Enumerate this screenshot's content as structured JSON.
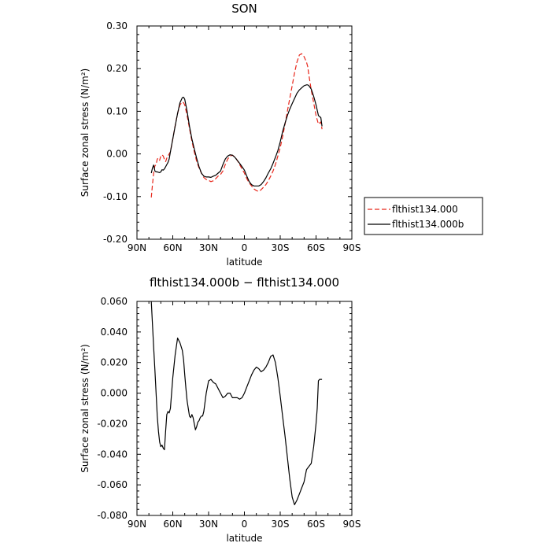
{
  "chart_data": [
    {
      "type": "line",
      "title": "SON",
      "xlabel": "latitude",
      "ylabel": "Surface zonal stress (N/m²)",
      "xlim": [
        90,
        -90
      ],
      "ylim": [
        -0.2,
        0.3
      ],
      "xticks": [
        90,
        60,
        30,
        0,
        -30,
        -60,
        -90
      ],
      "xticklabels": [
        "90N",
        "60N",
        "30N",
        "0",
        "30S",
        "60S",
        "90S"
      ],
      "yticks": [
        -0.2,
        -0.1,
        0.0,
        0.1,
        0.2,
        0.3
      ],
      "yticklabels": [
        "-0.20",
        "-0.10",
        "0.00",
        "0.10",
        "0.20",
        "0.30"
      ],
      "legend_position": "outside-right",
      "grid": false,
      "series": [
        {
          "name": "flthist134.000",
          "color": "#e8271b",
          "dash": "dashed",
          "x": [
            78,
            77,
            76,
            75,
            74,
            73,
            72,
            71,
            70,
            69,
            68,
            67,
            66,
            65,
            64,
            63,
            62,
            61,
            60,
            58,
            56,
            54,
            52,
            51,
            50,
            48,
            46,
            44,
            42,
            40,
            38,
            36,
            34,
            32,
            30,
            28,
            26,
            24,
            22,
            20,
            18,
            16,
            14,
            12,
            10,
            8,
            6,
            4,
            2,
            0,
            -2,
            -4,
            -6,
            -8,
            -10,
            -12,
            -14,
            -16,
            -18,
            -20,
            -22,
            -24,
            -26,
            -28,
            -30,
            -32,
            -34,
            -36,
            -38,
            -40,
            -42,
            -44,
            -46,
            -48,
            -50,
            -52,
            -53,
            -54,
            -56,
            -58,
            -60,
            -62,
            -64,
            -65
          ],
          "y": [
            -0.102,
            -0.072,
            -0.045,
            -0.028,
            -0.025,
            -0.012,
            -0.01,
            -0.015,
            -0.005,
            -0.002,
            -0.005,
            -0.013,
            -0.018,
            -0.01,
            -0.005,
            0.0,
            0.005,
            0.02,
            0.035,
            0.066,
            0.095,
            0.115,
            0.122,
            0.12,
            0.115,
            0.09,
            0.06,
            0.03,
            0.005,
            -0.017,
            -0.033,
            -0.045,
            -0.055,
            -0.06,
            -0.062,
            -0.065,
            -0.063,
            -0.058,
            -0.052,
            -0.048,
            -0.04,
            -0.025,
            -0.012,
            -0.005,
            -0.003,
            -0.007,
            -0.015,
            -0.025,
            -0.035,
            -0.045,
            -0.058,
            -0.068,
            -0.075,
            -0.082,
            -0.086,
            -0.088,
            -0.084,
            -0.078,
            -0.072,
            -0.063,
            -0.052,
            -0.04,
            -0.025,
            -0.005,
            0.015,
            0.04,
            0.07,
            0.1,
            0.13,
            0.16,
            0.19,
            0.215,
            0.232,
            0.235,
            0.228,
            0.215,
            0.205,
            0.185,
            0.15,
            0.12,
            0.09,
            0.07,
            0.075,
            0.058
          ]
        },
        {
          "name": "flthist134.000b",
          "color": "#000000",
          "dash": "solid",
          "x": [
            78,
            77,
            76,
            75,
            74,
            73,
            72,
            71,
            70,
            69,
            68,
            67,
            66,
            65,
            64,
            63,
            62,
            61,
            60,
            58,
            56,
            54,
            52,
            51,
            50,
            48,
            46,
            44,
            42,
            40,
            38,
            36,
            34,
            32,
            30,
            28,
            26,
            24,
            22,
            20,
            18,
            16,
            14,
            12,
            10,
            8,
            6,
            4,
            2,
            0,
            -2,
            -4,
            -6,
            -8,
            -10,
            -12,
            -14,
            -16,
            -18,
            -20,
            -22,
            -24,
            -26,
            -28,
            -30,
            -32,
            -34,
            -36,
            -38,
            -40,
            -42,
            -44,
            -46,
            -48,
            -50,
            -52,
            -53,
            -54,
            -56,
            -58,
            -60,
            -62,
            -64,
            -65
          ],
          "y": [
            -0.045,
            -0.033,
            -0.026,
            -0.04,
            -0.042,
            -0.042,
            -0.043,
            -0.044,
            -0.042,
            -0.037,
            -0.038,
            -0.035,
            -0.03,
            -0.025,
            -0.02,
            -0.012,
            0.005,
            0.02,
            0.035,
            0.065,
            0.095,
            0.12,
            0.132,
            0.133,
            0.128,
            0.1,
            0.065,
            0.035,
            0.012,
            -0.01,
            -0.03,
            -0.045,
            -0.052,
            -0.054,
            -0.054,
            -0.055,
            -0.052,
            -0.05,
            -0.045,
            -0.04,
            -0.025,
            -0.012,
            -0.005,
            -0.002,
            -0.003,
            -0.008,
            -0.015,
            -0.022,
            -0.03,
            -0.038,
            -0.052,
            -0.065,
            -0.072,
            -0.075,
            -0.075,
            -0.075,
            -0.072,
            -0.065,
            -0.056,
            -0.045,
            -0.035,
            -0.022,
            -0.008,
            0.008,
            0.028,
            0.052,
            0.072,
            0.09,
            0.105,
            0.118,
            0.13,
            0.142,
            0.15,
            0.155,
            0.16,
            0.162,
            0.162,
            0.16,
            0.152,
            0.135,
            0.115,
            0.09,
            0.085,
            0.065
          ]
        }
      ]
    },
    {
      "type": "line",
      "title": "flthist134.000b − flthist134.000",
      "xlabel": "latitude",
      "ylabel": "Surface zonal stress (N/m²)",
      "xlim": [
        90,
        -90
      ],
      "ylim": [
        -0.08,
        0.06
      ],
      "xticks": [
        90,
        60,
        30,
        0,
        -30,
        -60,
        -90
      ],
      "xticklabels": [
        "90N",
        "60N",
        "30N",
        "0",
        "30S",
        "60S",
        "90S"
      ],
      "yticks": [
        -0.08,
        -0.06,
        -0.04,
        -0.02,
        0.0,
        0.02,
        0.04,
        0.06
      ],
      "yticklabels": [
        "-0.080",
        "-0.060",
        "-0.040",
        "-0.020",
        "0.000",
        "0.020",
        "0.040",
        "0.060"
      ],
      "grid": false,
      "series": [
        {
          "color": "#000000",
          "dash": "solid",
          "x": [
            78,
            77,
            76,
            75,
            74,
            73,
            72,
            71,
            70,
            69,
            68,
            67,
            66,
            65,
            64,
            63,
            62,
            61,
            60,
            58,
            56,
            54,
            52,
            51,
            50,
            49,
            48,
            47,
            46,
            45,
            44,
            43,
            42,
            41,
            40,
            39,
            38,
            37,
            36,
            35,
            34,
            32,
            30,
            28,
            26,
            24,
            22,
            20,
            18,
            16,
            14,
            12,
            10,
            8,
            6,
            4,
            2,
            0,
            -2,
            -4,
            -6,
            -8,
            -10,
            -12,
            -14,
            -16,
            -18,
            -20,
            -22,
            -24,
            -26,
            -28,
            -30,
            -32,
            -34,
            -36,
            -38,
            -40,
            -42,
            -44,
            -46,
            -48,
            -50,
            -52,
            -54,
            -56,
            -58,
            -60,
            -61,
            -62,
            -63,
            -64,
            -64.5,
            -65
          ],
          "y": [
            0.06,
            0.045,
            0.03,
            0.015,
            0.0,
            -0.015,
            -0.025,
            -0.032,
            -0.035,
            -0.034,
            -0.036,
            -0.037,
            -0.025,
            -0.014,
            -0.012,
            -0.013,
            -0.01,
            0.0,
            0.01,
            0.025,
            0.036,
            0.033,
            0.028,
            0.022,
            0.012,
            0.003,
            -0.005,
            -0.01,
            -0.015,
            -0.016,
            -0.014,
            -0.016,
            -0.02,
            -0.024,
            -0.022,
            -0.019,
            -0.018,
            -0.016,
            -0.015,
            -0.015,
            -0.012,
            0.0,
            0.008,
            0.009,
            0.007,
            0.006,
            0.003,
            0.0,
            -0.003,
            -0.002,
            0.0,
            0.0,
            -0.003,
            -0.003,
            -0.003,
            -0.004,
            -0.003,
            0.0,
            0.004,
            0.008,
            0.012,
            0.015,
            0.017,
            0.016,
            0.014,
            0.015,
            0.017,
            0.02,
            0.024,
            0.025,
            0.02,
            0.01,
            -0.002,
            -0.015,
            -0.028,
            -0.042,
            -0.056,
            -0.068,
            -0.073,
            -0.07,
            -0.066,
            -0.062,
            -0.058,
            -0.05,
            -0.048,
            -0.046,
            -0.035,
            -0.02,
            -0.01,
            0.008,
            0.009,
            0.009,
            0.009,
            0.009
          ]
        }
      ]
    }
  ]
}
